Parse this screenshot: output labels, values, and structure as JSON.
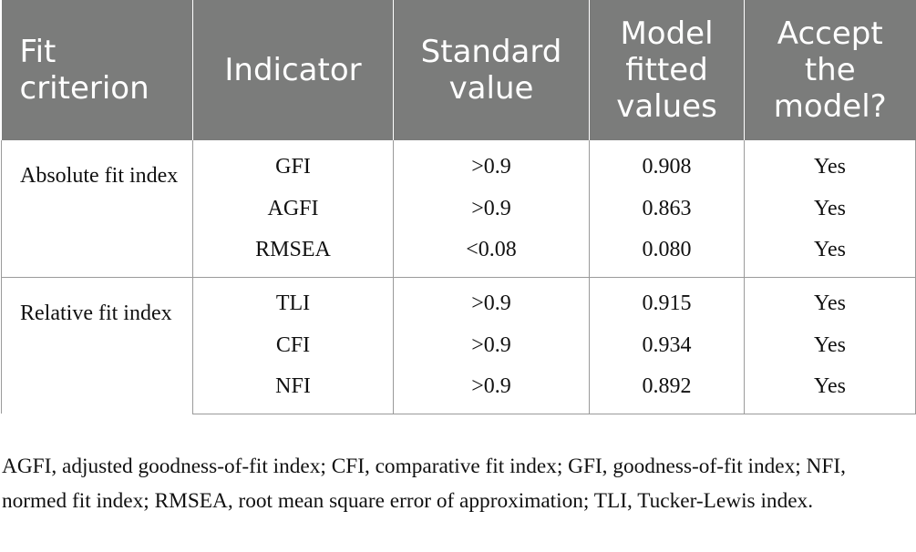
{
  "table": {
    "headers": [
      "Fit criterion",
      "Indicator",
      "Standard value",
      "Model fitted values",
      "Accept the model?"
    ],
    "groups": [
      {
        "criterion": "Absolute fit index",
        "rows": [
          {
            "indicator": "GFI",
            "standard": ">0.9",
            "fitted": "0.908",
            "accept": "Yes"
          },
          {
            "indicator": "AGFI",
            "standard": ">0.9",
            "fitted": "0.863",
            "accept": "Yes"
          },
          {
            "indicator": "RMSEA",
            "standard": "<0.08",
            "fitted": "0.080",
            "accept": "Yes"
          }
        ]
      },
      {
        "criterion": "Relative fit index",
        "rows": [
          {
            "indicator": "TLI",
            "standard": ">0.9",
            "fitted": "0.915",
            "accept": "Yes"
          },
          {
            "indicator": "CFI",
            "standard": ">0.9",
            "fitted": "0.934",
            "accept": "Yes"
          },
          {
            "indicator": "NFI",
            "standard": ">0.9",
            "fitted": "0.892",
            "accept": "Yes"
          }
        ]
      }
    ]
  },
  "footnote": "AGFI, adjusted goodness-of-fit index; CFI, comparative fit index; GFI, goodness-of-fit index; NFI, normed fit index; RMSEA, root mean square error of approximation; TLI, Tucker-Lewis index.",
  "colors": {
    "header_bg": "#7b7c7b",
    "header_text": "#ffffff",
    "rule": "#9a9a9a"
  }
}
